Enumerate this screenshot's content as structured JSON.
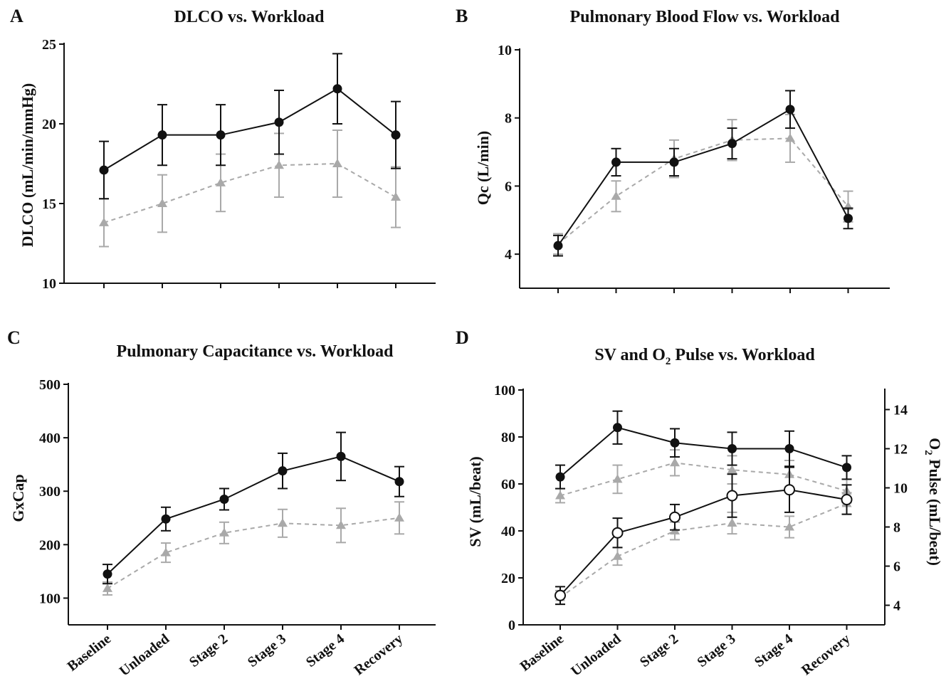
{
  "colors": {
    "primary": "#111111",
    "secondary": "#a9a9a9"
  },
  "categories": [
    "Baseline",
    "Unloaded",
    "Stage 2",
    "Stage 3",
    "Stage 4",
    "Recovery"
  ],
  "chart_data": [
    {
      "id": "A",
      "type": "line",
      "panel_letter": "A",
      "title": "DLCO vs. Workload",
      "ylabel": "DLCO (mL/min/mmHg)",
      "ylim": [
        10,
        25
      ],
      "yticks": [
        10,
        15,
        20,
        25
      ],
      "show_x_labels": false,
      "series": [
        {
          "style": "solid-circle",
          "axis": "left",
          "values": [
            17.1,
            19.3,
            19.3,
            20.1,
            22.2,
            19.3
          ],
          "errors": [
            1.8,
            1.9,
            1.9,
            2.0,
            2.2,
            2.1
          ]
        },
        {
          "style": "dashed-triangle",
          "axis": "left",
          "values": [
            13.8,
            15.0,
            16.3,
            17.4,
            17.5,
            15.4
          ],
          "errors": [
            1.5,
            1.8,
            1.8,
            2.0,
            2.1,
            1.9
          ]
        }
      ]
    },
    {
      "id": "B",
      "type": "line",
      "panel_letter": "B",
      "title": "Pulmonary Blood Flow vs. Workload",
      "ylabel": "Qc (L/min)",
      "ylim": [
        3,
        10
      ],
      "yticks": [
        4,
        6,
        8,
        10
      ],
      "show_x_labels": false,
      "series": [
        {
          "style": "solid-circle",
          "axis": "left",
          "values": [
            4.25,
            6.7,
            6.7,
            7.25,
            8.25,
            5.05
          ],
          "errors": [
            0.3,
            0.4,
            0.4,
            0.45,
            0.55,
            0.3
          ]
        },
        {
          "style": "dashed-triangle",
          "axis": "left",
          "values": [
            4.3,
            5.7,
            6.8,
            7.35,
            7.4,
            5.4
          ],
          "errors": [
            0.3,
            0.45,
            0.55,
            0.6,
            0.7,
            0.45
          ]
        }
      ]
    },
    {
      "id": "C",
      "type": "line",
      "panel_letter": "C",
      "title": "Pulmonary Capacitance vs. Workload",
      "ylabel": "GxCap",
      "ylim": [
        50,
        500
      ],
      "yticks": [
        100,
        200,
        300,
        400,
        500
      ],
      "show_x_labels": true,
      "series": [
        {
          "style": "solid-circle",
          "axis": "left",
          "values": [
            145,
            248,
            285,
            338,
            365,
            318
          ],
          "errors": [
            18,
            22,
            20,
            33,
            45,
            28
          ]
        },
        {
          "style": "dashed-triangle",
          "axis": "left",
          "values": [
            118,
            185,
            222,
            240,
            236,
            250
          ],
          "errors": [
            12,
            18,
            20,
            26,
            32,
            30
          ]
        }
      ]
    },
    {
      "id": "D",
      "type": "line",
      "panel_letter": "D",
      "title_main": "SV and O",
      "title_sub": "2",
      "title_end": " Pulse vs. Workload",
      "ylabel": "SV (mL/beat)",
      "y2label_main": "O",
      "y2label_sub": "2",
      "y2label_end": " Pulse (mL/beat)",
      "ylim": [
        0,
        100
      ],
      "yticks": [
        0,
        20,
        40,
        60,
        80,
        100
      ],
      "y2lim": [
        3,
        15
      ],
      "y2ticks": [
        4,
        6,
        8,
        10,
        12,
        14
      ],
      "show_x_labels": true,
      "series": [
        {
          "style": "solid-circle",
          "axis": "left",
          "values": [
            63,
            84,
            77.5,
            75,
            75,
            67
          ],
          "errors": [
            5,
            7,
            6,
            7,
            7.5,
            5
          ]
        },
        {
          "style": "dashed-triangle",
          "axis": "left",
          "values": [
            55,
            62,
            69,
            66,
            64,
            57
          ],
          "errors": [
            3,
            6,
            5.5,
            6,
            6,
            5
          ]
        },
        {
          "style": "open-circle",
          "axis": "right",
          "values": [
            4.5,
            7.7,
            8.5,
            9.6,
            9.9,
            9.4
          ],
          "errors": [
            0.45,
            0.75,
            0.65,
            1.1,
            1.15,
            0.75
          ]
        },
        {
          "style": "dashed-triangle",
          "axis": "right",
          "values": [
            4.4,
            6.5,
            7.8,
            8.2,
            8.0,
            9.2
          ],
          "errors": [
            0.35,
            0.45,
            0.45,
            0.55,
            0.55,
            0.55
          ]
        }
      ]
    }
  ]
}
